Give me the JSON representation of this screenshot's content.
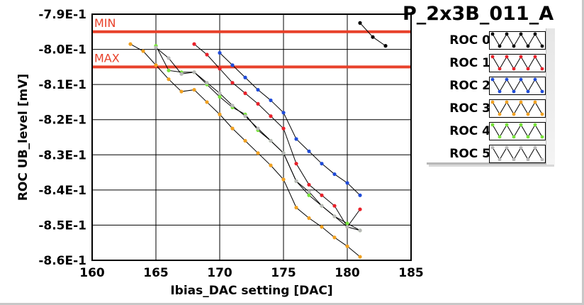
{
  "chart_data": {
    "type": "line",
    "title": "P_2x3B_011_A",
    "xlabel": "Ibias_DAC setting [DAC]",
    "ylabel": "ROC UB_level [mV]",
    "xlim": [
      160,
      185
    ],
    "ylim": [
      -0.86,
      -0.79
    ],
    "x_ticks": [
      160,
      165,
      170,
      175,
      180,
      185
    ],
    "x_tick_labels": [
      "160",
      "165",
      "170",
      "175",
      "180",
      "185"
    ],
    "y_ticks": [
      -0.79,
      -0.8,
      -0.81,
      -0.82,
      -0.83,
      -0.84,
      -0.85,
      -0.86
    ],
    "y_tick_labels": [
      "-7.9E-1",
      "-8.0E-1",
      "-8.1E-1",
      "-8.2E-1",
      "-8.3E-1",
      "-8.4E-1",
      "-8.5E-1",
      "-8.6E-1"
    ],
    "grid": true,
    "legend_position": "right",
    "thresholds": [
      {
        "label": "MIN",
        "y": -0.795,
        "color": "#e8412a"
      },
      {
        "label": "MAX",
        "y": -0.805,
        "color": "#e8412a"
      }
    ],
    "series": [
      {
        "name": "ROC 0",
        "color": "#000000",
        "x": [
          181,
          182,
          183
        ],
        "y": [
          -0.7925,
          -0.7965,
          -0.799
        ]
      },
      {
        "name": "ROC 1",
        "color": "#e8212a",
        "x": [
          168,
          169,
          170,
          171,
          172,
          173,
          174,
          175,
          176,
          177,
          178,
          179,
          180,
          181
        ],
        "y": [
          -0.7985,
          -0.8015,
          -0.8055,
          -0.8095,
          -0.8125,
          -0.8155,
          -0.819,
          -0.8225,
          -0.8325,
          -0.8385,
          -0.8415,
          -0.8445,
          -0.8505,
          -0.8455
        ]
      },
      {
        "name": "ROC 2",
        "color": "#1f4bd8",
        "x": [
          170,
          171,
          172,
          173,
          174,
          175,
          176,
          177,
          178,
          179,
          180,
          181
        ],
        "y": [
          -0.801,
          -0.8045,
          -0.808,
          -0.8115,
          -0.8145,
          -0.818,
          -0.8255,
          -0.829,
          -0.8325,
          -0.8355,
          -0.838,
          -0.8415
        ]
      },
      {
        "name": "ROC 3",
        "color": "#f0a020",
        "x": [
          163,
          164,
          165,
          166,
          167,
          168,
          169,
          170,
          171,
          172,
          173,
          174,
          175,
          176,
          177,
          178,
          179,
          180,
          181
        ],
        "y": [
          -0.7985,
          -0.8005,
          -0.8045,
          -0.8085,
          -0.812,
          -0.8115,
          -0.815,
          -0.8185,
          -0.8225,
          -0.826,
          -0.8295,
          -0.833,
          -0.837,
          -0.845,
          -0.848,
          -0.8505,
          -0.8535,
          -0.856,
          -0.859
        ]
      },
      {
        "name": "ROC 4",
        "color": "#77e33a",
        "x": [
          165,
          166,
          167,
          168,
          169,
          170,
          171,
          172,
          173,
          174,
          175,
          176,
          177,
          178,
          179,
          180,
          181
        ],
        "y": [
          -0.799,
          -0.806,
          -0.8065,
          -0.8065,
          -0.81,
          -0.8135,
          -0.8165,
          -0.8185,
          -0.823,
          -0.826,
          -0.8295,
          -0.8375,
          -0.8415,
          -0.8445,
          -0.8475,
          -0.8495,
          -0.8515
        ]
      },
      {
        "name": "ROC 5",
        "color": "#b8b8b8",
        "x": [
          165,
          166,
          167,
          168,
          169,
          170,
          171,
          172,
          173,
          174,
          175,
          176,
          177,
          178,
          179,
          180,
          181
        ],
        "y": [
          -0.7995,
          -0.8025,
          -0.807,
          -0.8065,
          -0.8095,
          -0.8125,
          -0.816,
          -0.819,
          -0.8225,
          -0.826,
          -0.8295,
          -0.8375,
          -0.8405,
          -0.8445,
          -0.8475,
          -0.8505,
          -0.8515
        ]
      }
    ]
  }
}
